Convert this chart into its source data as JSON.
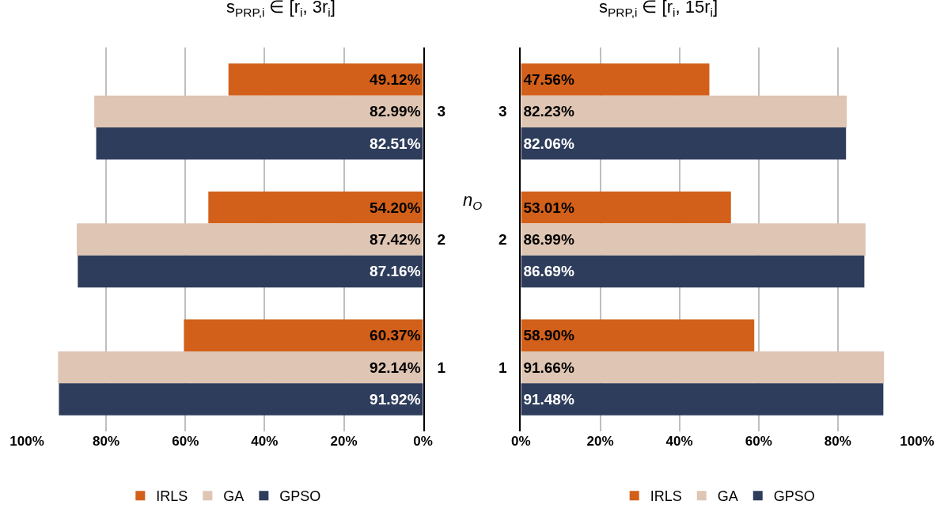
{
  "chart_data": [
    {
      "type": "bar",
      "orientation": "horizontal",
      "title": "s$_{PRP,i}$ ∈ [r$_{i}$, 3r$_{i}$]",
      "ylabel": "n$_{O}$",
      "categories": [
        "3",
        "2",
        "1"
      ],
      "series": [
        {
          "name": "IRLS",
          "color": "#d2601a",
          "values": [
            49.12,
            54.2,
            60.37
          ],
          "value_labels": [
            "49.12%",
            "54.20%",
            "60.37%"
          ]
        },
        {
          "name": "GA",
          "color": "#dfc5b3",
          "values": [
            82.99,
            87.42,
            92.14
          ],
          "value_labels": [
            "82.99%",
            "87.42%",
            "92.14%"
          ]
        },
        {
          "name": "GPSO",
          "color": "#2e3d5c",
          "values": [
            82.51,
            87.16,
            91.92
          ],
          "value_labels": [
            "82.51%",
            "87.16%",
            "91.92%"
          ]
        }
      ],
      "xlim": [
        100,
        0
      ],
      "xticks": [
        {
          "value": 100,
          "label": "100%"
        },
        {
          "value": 80,
          "label": "80%"
        },
        {
          "value": 60,
          "label": "60%"
        },
        {
          "value": 40,
          "label": "40%"
        },
        {
          "value": 20,
          "label": "20%"
        },
        {
          "value": 0,
          "label": "0%"
        }
      ],
      "grid": "x",
      "legend": "bottom"
    },
    {
      "type": "bar",
      "orientation": "horizontal",
      "title": "s$_{PRP,i}$ ∈ [r$_{i}$, 15r$_{i}$]",
      "categories": [
        "3",
        "2",
        "1"
      ],
      "series": [
        {
          "name": "IRLS",
          "color": "#d2601a",
          "values": [
            47.56,
            53.01,
            58.9
          ],
          "value_labels": [
            "47.56%",
            "53.01%",
            "58.90%"
          ]
        },
        {
          "name": "GA",
          "color": "#dfc5b3",
          "values": [
            82.23,
            86.99,
            91.66
          ],
          "value_labels": [
            "82.23%",
            "86.99%",
            "91.66%"
          ]
        },
        {
          "name": "GPSO",
          "color": "#2e3d5c",
          "values": [
            82.06,
            86.69,
            91.48
          ],
          "value_labels": [
            "82.06%",
            "86.69%",
            "91.48%"
          ]
        }
      ],
      "xlim": [
        0,
        100
      ],
      "xticks": [
        {
          "value": 0,
          "label": "0%"
        },
        {
          "value": 20,
          "label": "20%"
        },
        {
          "value": 40,
          "label": "40%"
        },
        {
          "value": 60,
          "label": "60%"
        },
        {
          "value": 80,
          "label": "80%"
        },
        {
          "value": 100,
          "label": "100%"
        }
      ],
      "grid": "x",
      "legend": "bottom"
    }
  ]
}
